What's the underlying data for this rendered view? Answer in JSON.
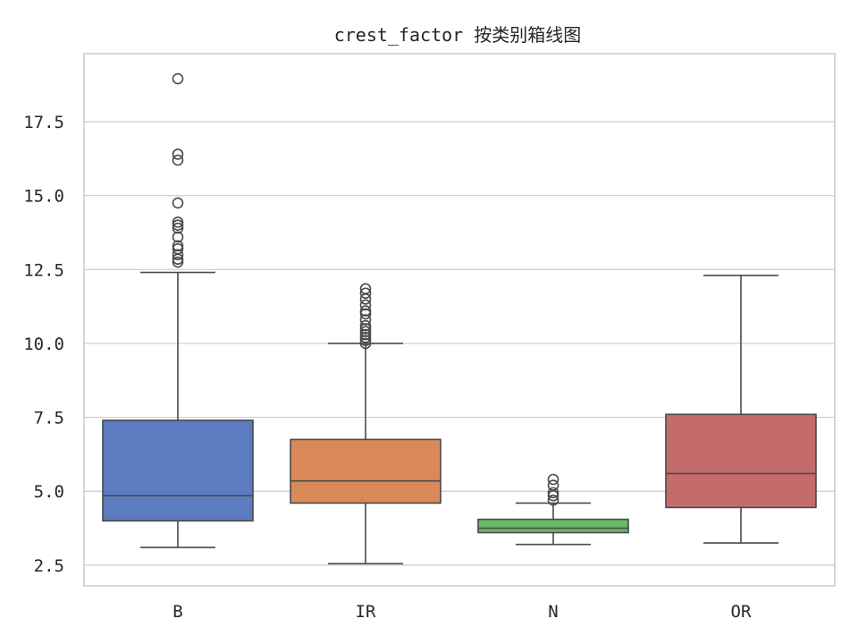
{
  "chart_data": {
    "type": "box",
    "title": "crest_factor 按类别箱线图",
    "xlabel": "",
    "ylabel": "",
    "ylim": [
      1.8,
      19.8
    ],
    "yticks": [
      2.5,
      5.0,
      7.5,
      10.0,
      12.5,
      15.0,
      17.5
    ],
    "ytick_labels": [
      "2.5",
      "5.0",
      "7.5",
      "10.0",
      "12.5",
      "15.0",
      "17.5"
    ],
    "grid": true,
    "categories": [
      "B",
      "IR",
      "N",
      "OR"
    ],
    "boxes": [
      {
        "category": "B",
        "whisker_low": 3.1,
        "q1": 4.0,
        "median": 4.85,
        "q3": 7.4,
        "whisker_high": 12.4,
        "color": "#5b7cc0",
        "outliers": [
          12.75,
          12.85,
          13.0,
          13.2,
          13.3,
          13.6,
          13.9,
          14.0,
          14.1,
          14.75,
          16.2,
          16.4,
          18.95
        ]
      },
      {
        "category": "IR",
        "whisker_low": 2.55,
        "q1": 4.6,
        "median": 5.35,
        "q3": 6.75,
        "whisker_high": 10.0,
        "color": "#d9895a",
        "outliers": [
          10.0,
          10.1,
          10.2,
          10.3,
          10.4,
          10.5,
          10.6,
          10.8,
          11.0,
          11.1,
          11.3,
          11.5,
          11.7,
          11.85
        ]
      },
      {
        "category": "N",
        "whisker_low": 3.2,
        "q1": 3.6,
        "median": 3.75,
        "q3": 4.05,
        "whisker_high": 4.6,
        "color": "#6ab866",
        "outliers": [
          4.7,
          4.85,
          4.95,
          5.2,
          5.4
        ]
      },
      {
        "category": "OR",
        "whisker_low": 3.25,
        "q1": 4.45,
        "median": 5.6,
        "q3": 7.6,
        "whisker_high": 12.3,
        "color": "#c46b6c",
        "outliers": []
      }
    ]
  }
}
